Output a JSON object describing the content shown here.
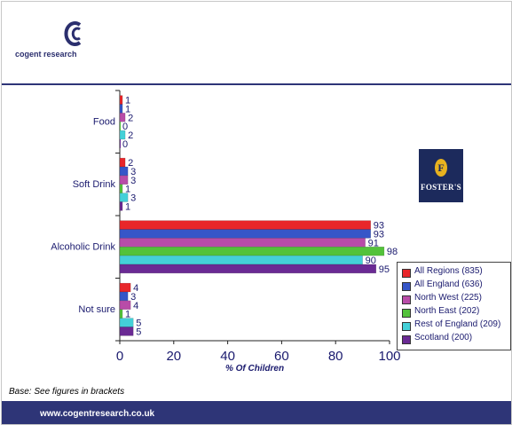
{
  "brand": {
    "logo_text": "cogent research",
    "footer_url": "www.cogentresearch.co.uk",
    "sponsor": "FOSTER'S"
  },
  "base_note": "Base: See figures in brackets",
  "chart_data": {
    "type": "bar",
    "orientation": "horizontal",
    "categories": [
      "Food",
      "Soft Drink",
      "Alcoholic Drink",
      "Not sure"
    ],
    "series": [
      {
        "name": "All Regions (835)",
        "color": "#e8262a",
        "values": [
          1,
          2,
          93,
          4
        ]
      },
      {
        "name": "All England (636)",
        "color": "#3656c8",
        "values": [
          1,
          3,
          93,
          3
        ]
      },
      {
        "name": "North West (225)",
        "color": "#b84ca8",
        "values": [
          2,
          3,
          91,
          4
        ]
      },
      {
        "name": "North East (202)",
        "color": "#53c23a",
        "values": [
          0,
          1,
          98,
          1
        ]
      },
      {
        "name": "Rest of England (209)",
        "color": "#44d0d8",
        "values": [
          2,
          3,
          90,
          5
        ]
      },
      {
        "name": "Scotland (200)",
        "color": "#6a2a94",
        "values": [
          0,
          1,
          95,
          5
        ]
      }
    ],
    "xlabel": "% Of Children",
    "ylabel": "",
    "xlim": [
      0,
      100
    ],
    "xticks": [
      0,
      20,
      40,
      60,
      80,
      100
    ],
    "grid": false,
    "legend_position": "bottom-right"
  }
}
